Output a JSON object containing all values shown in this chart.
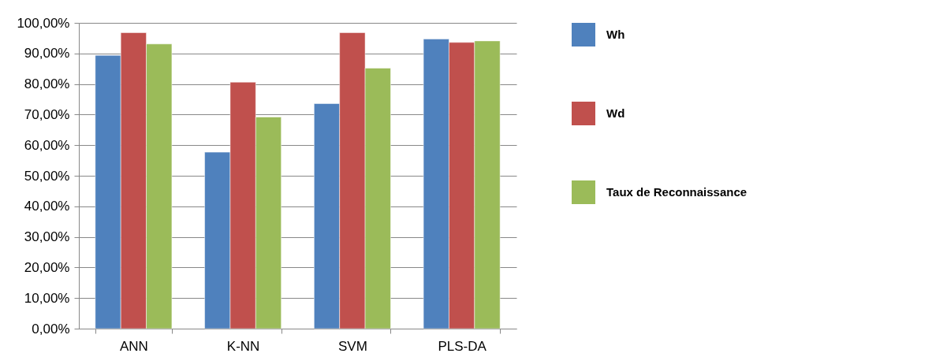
{
  "chart_data": {
    "type": "bar",
    "categories": [
      "ANN",
      "K-NN",
      "SVM",
      "PLS-DA"
    ],
    "series": [
      {
        "name": "Wh",
        "color": "#4f81bd",
        "values": [
          89.4,
          57.7,
          73.6,
          94.7
        ]
      },
      {
        "name": "Wd",
        "color": "#c0504d",
        "values": [
          96.8,
          80.6,
          96.8,
          93.6
        ]
      },
      {
        "name": "Taux de Reconnaissance",
        "color": "#9bbb59",
        "values": [
          93.1,
          69.2,
          85.2,
          94.1
        ]
      }
    ],
    "ylim": [
      0,
      100
    ],
    "yticks": [
      {
        "value": 0,
        "label": "0,00%"
      },
      {
        "value": 10,
        "label": "10,00%"
      },
      {
        "value": 20,
        "label": "20,00%"
      },
      {
        "value": 30,
        "label": "30,00%"
      },
      {
        "value": 40,
        "label": "40,00%"
      },
      {
        "value": 50,
        "label": "50,00%"
      },
      {
        "value": 60,
        "label": "60,00%"
      },
      {
        "value": 70,
        "label": "70,00%"
      },
      {
        "value": 80,
        "label": "80,00%"
      },
      {
        "value": 90,
        "label": "90,00%"
      },
      {
        "value": 100,
        "label": "100,00%"
      }
    ],
    "grid": "y",
    "legend": "right"
  }
}
